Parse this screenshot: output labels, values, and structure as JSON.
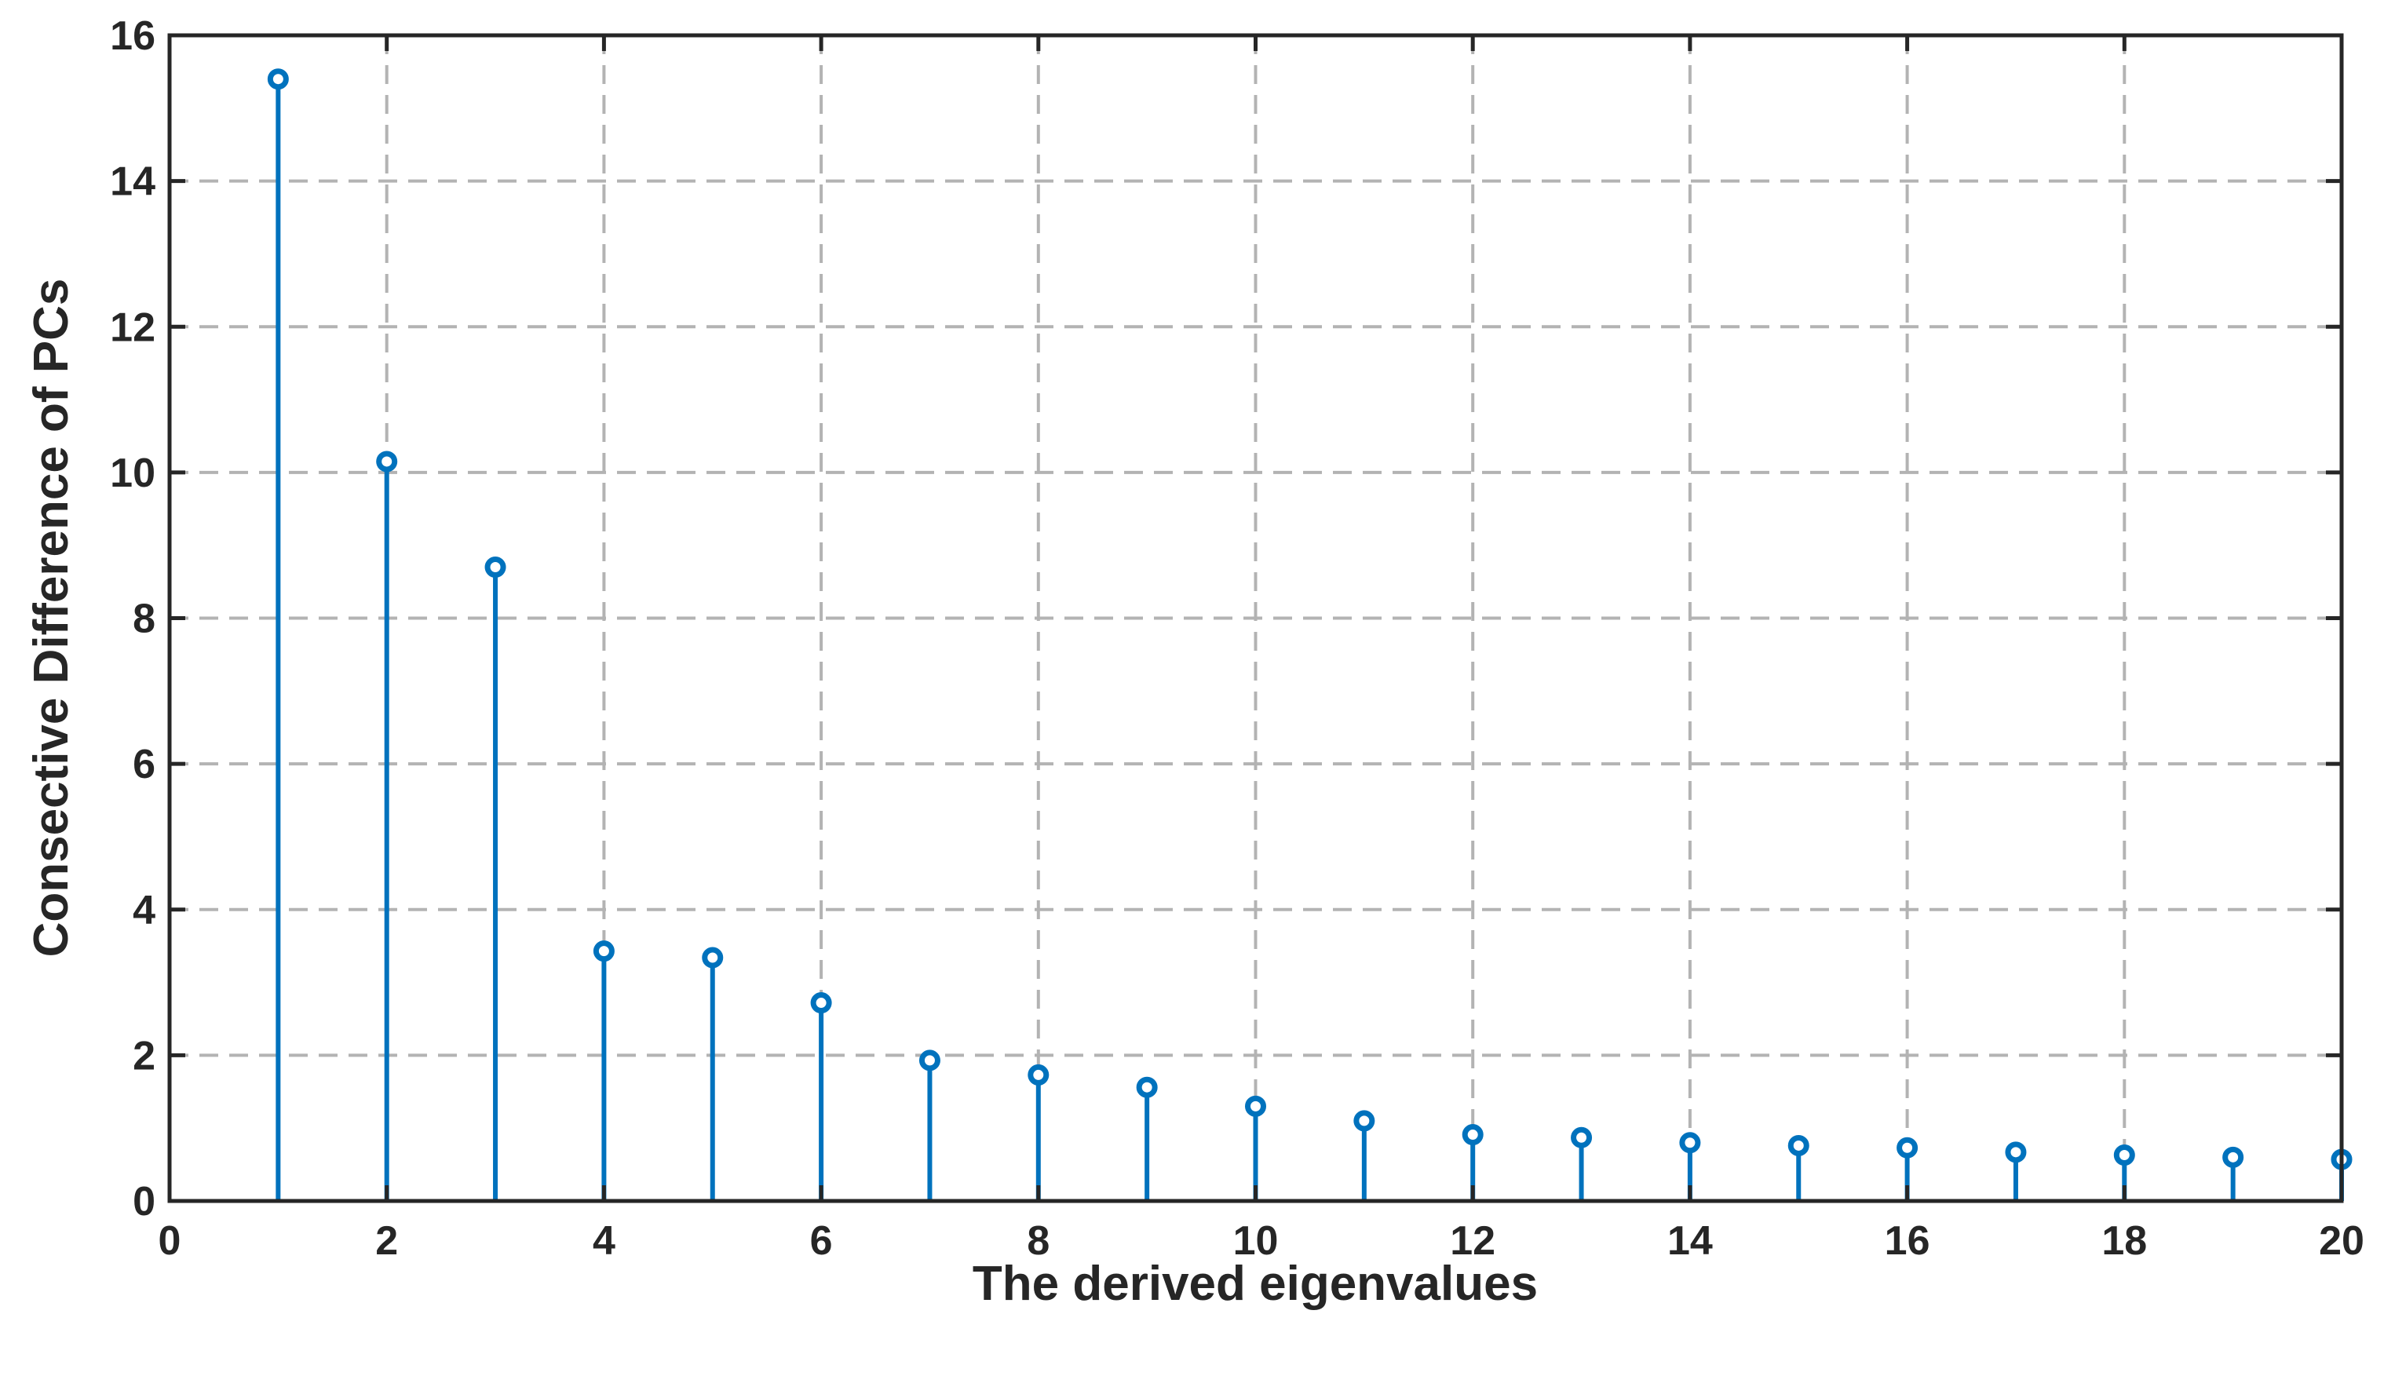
{
  "chart_data": {
    "type": "stem",
    "title": "",
    "xlabel": "The derived eigenvalues",
    "ylabel": "Consective Difference of PCs",
    "xlim": [
      0,
      20
    ],
    "ylim": [
      0,
      16
    ],
    "xticks": [
      0,
      2,
      4,
      6,
      8,
      10,
      12,
      14,
      16,
      18,
      20
    ],
    "yticks": [
      0,
      2,
      4,
      6,
      8,
      10,
      12,
      14,
      16
    ],
    "xtick_labels": [
      "0",
      "2",
      "4",
      "6",
      "8",
      "10",
      "12",
      "14",
      "16",
      "18",
      "20"
    ],
    "ytick_labels": [
      "0",
      "2",
      "4",
      "6",
      "8",
      "10",
      "12",
      "14",
      "16"
    ],
    "grid": true,
    "grid_style": "dashed",
    "legend": "none",
    "series": [
      {
        "color": "#0072BD",
        "marker": "open-circle",
        "x": [
          1,
          2,
          3,
          4,
          5,
          6,
          7,
          8,
          9,
          10,
          11,
          12,
          13,
          14,
          15,
          16,
          17,
          18,
          19,
          20
        ],
        "values": [
          15.4,
          10.15,
          8.7,
          3.43,
          3.34,
          2.72,
          1.93,
          1.73,
          1.56,
          1.3,
          1.1,
          0.91,
          0.87,
          0.8,
          0.76,
          0.73,
          0.67,
          0.63,
          0.6,
          0.57
        ]
      }
    ]
  }
}
